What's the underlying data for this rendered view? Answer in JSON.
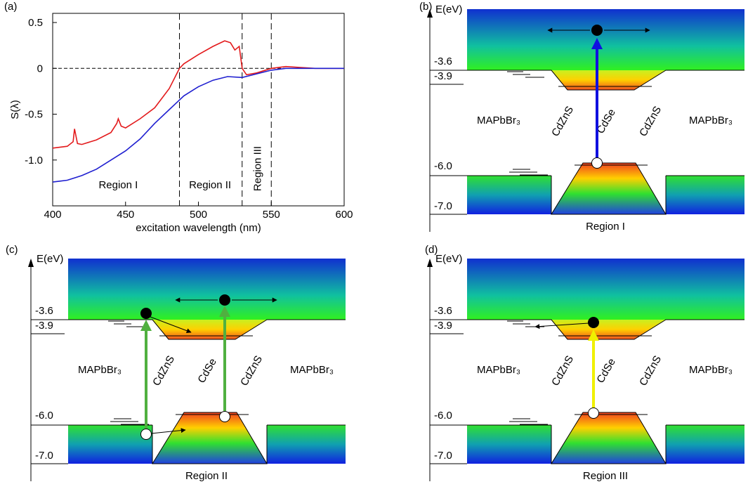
{
  "chart_data": {
    "type": "line",
    "panel_label": "(a)",
    "xlabel": "excitation wavelength (nm)",
    "ylabel": "S(λ)",
    "xlim": [
      400,
      600
    ],
    "ylim": [
      -1.5,
      0.6
    ],
    "xticks": [
      400,
      450,
      500,
      550,
      600
    ],
    "yticks": [
      0.5,
      0,
      -0.5,
      {
        "value": -1,
        "label": "-1.0"
      }
    ],
    "vlines": [
      487,
      530,
      550
    ],
    "hline": 0,
    "regions": [
      {
        "label": "Region  I",
        "x": 445
      },
      {
        "label": "Region  II",
        "x": 508
      },
      {
        "label": "Region  III",
        "x": 540
      }
    ],
    "series": [
      {
        "name": "red",
        "color": "#e31a1c",
        "x": [
          400,
          410,
          414,
          415,
          417,
          420,
          430,
          440,
          444,
          445,
          447,
          450,
          460,
          470,
          480,
          487,
          490,
          500,
          510,
          518,
          522,
          525,
          528,
          530,
          533,
          540,
          550,
          560,
          570,
          580,
          590,
          600
        ],
        "values": [
          -0.87,
          -0.85,
          -0.8,
          -0.66,
          -0.82,
          -0.83,
          -0.78,
          -0.7,
          -0.6,
          -0.55,
          -0.63,
          -0.65,
          -0.55,
          -0.43,
          -0.22,
          0.0,
          0.05,
          0.15,
          0.24,
          0.3,
          0.28,
          0.2,
          0.24,
          0.0,
          -0.07,
          -0.05,
          0.0,
          0.02,
          0.01,
          0.0,
          0.0,
          0.0
        ]
      },
      {
        "name": "blue",
        "color": "#1f1fd0",
        "x": [
          400,
          405,
          410,
          420,
          430,
          440,
          450,
          460,
          470,
          480,
          490,
          500,
          510,
          520,
          530,
          540,
          550,
          560,
          580,
          600
        ],
        "values": [
          -1.24,
          -1.23,
          -1.22,
          -1.17,
          -1.1,
          -1.0,
          -0.9,
          -0.77,
          -0.6,
          -0.45,
          -0.3,
          -0.2,
          -0.13,
          -0.09,
          -0.1,
          -0.06,
          -0.02,
          0.0,
          0.0,
          0.0
        ]
      }
    ]
  },
  "panels": [
    {
      "label": "(b)",
      "axis_label": "E(eV)",
      "levels": [
        "-3.6",
        "-3.9",
        "-6.0",
        "-7.0"
      ],
      "materials": [
        "MAPbBr₃",
        "CdZnS",
        "CdSe",
        "CdZnS",
        "MAPbBr₃"
      ],
      "region": "Region  I"
    },
    {
      "label": "(c)",
      "axis_label": "E(eV)",
      "levels": [
        "-3.6",
        "-3.9",
        "-6.0",
        "-7.0"
      ],
      "materials": [
        "MAPbBr₃",
        "CdZnS",
        "CdSe",
        "CdZnS",
        "MAPbBr₃"
      ],
      "region": "Region  II"
    },
    {
      "label": "(d)",
      "axis_label": "E(eV)",
      "levels": [
        "-3.6",
        "-3.9",
        "-6.0",
        "-7.0"
      ],
      "materials": [
        "MAPbBr₃",
        "CdZnS",
        "CdSe",
        "CdZnS",
        "MAPbBr₃"
      ],
      "region": "Region  III"
    }
  ]
}
